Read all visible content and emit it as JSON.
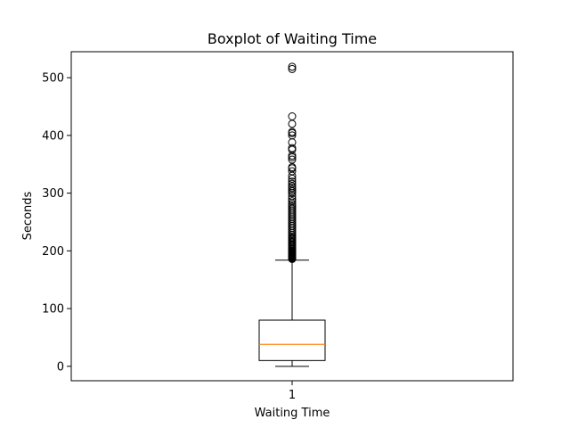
{
  "chart_data": {
    "type": "boxplot",
    "title": "Boxplot of Waiting Time",
    "xlabel": "Waiting Time",
    "ylabel": "Seconds",
    "categories": [
      "1"
    ],
    "ylim": [
      -25,
      545
    ],
    "yticks": [
      0,
      100,
      200,
      300,
      400,
      500
    ],
    "grid": false,
    "legend": false,
    "colors": {
      "box": "#000000",
      "median": "#ff7f0e",
      "outlier": "#000000"
    },
    "boxes": [
      {
        "label": "1",
        "whisker_low": 0,
        "q1": 10,
        "median": 38,
        "q3": 80,
        "whisker_high": 184,
        "outliers": [
          186,
          187,
          188,
          189,
          190,
          191,
          192,
          193,
          194,
          195,
          196,
          197,
          198,
          199,
          200,
          201,
          203,
          205,
          207,
          209,
          211,
          213,
          215,
          217,
          219,
          221,
          223,
          225,
          228,
          231,
          234,
          237,
          240,
          243,
          246,
          249,
          252,
          255,
          258,
          261,
          264,
          267,
          270,
          273,
          276,
          279,
          282,
          286,
          290,
          295,
          300,
          303,
          306,
          309,
          312,
          316,
          320,
          325,
          330,
          338,
          343,
          345,
          358,
          362,
          365,
          375,
          378,
          388,
          400,
          404,
          406,
          420,
          433,
          515,
          519
        ]
      }
    ]
  }
}
